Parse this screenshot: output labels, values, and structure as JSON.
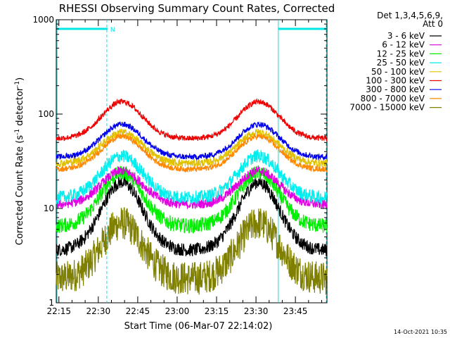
{
  "chart_data": {
    "type": "line",
    "title": "RHESSI Observing Summary Count Rates, Corrected",
    "xlabel": "Start Time (06-Mar-07 22:14:02)",
    "ylabel_main": "Corrected Count Rate (s",
    "ylabel_sup1": "-1",
    "ylabel_mid": " detector",
    "ylabel_sup2": "-1",
    "ylabel_end": ")",
    "yscale": "log",
    "ylim": [
      1,
      1000
    ],
    "xlim_minutes": [
      0,
      103
    ],
    "x_ticks": [
      {
        "label": "22:15",
        "minute": 1
      },
      {
        "label": "22:30",
        "minute": 16
      },
      {
        "label": "22:45",
        "minute": 31
      },
      {
        "label": "23:00",
        "minute": 46
      },
      {
        "label": "23:15",
        "minute": 61
      },
      {
        "label": "23:30",
        "minute": 76
      },
      {
        "label": "23:45",
        "minute": 91
      }
    ],
    "y_ticks": [
      {
        "label": "1",
        "value": 1
      },
      {
        "label": "10",
        "value": 10
      },
      {
        "label": "100",
        "value": 100
      },
      {
        "label": "1000",
        "value": 1000
      }
    ],
    "legend": {
      "position": "right",
      "header1": "Det 1,3,4,5,6,9,",
      "header2": "Att 0"
    },
    "series": [
      {
        "name": "3 - 6 keV",
        "color": "#000000",
        "base": 3.6,
        "peak": 19,
        "noise": 0.07
      },
      {
        "name": "6 - 12 keV",
        "color": "#e000e0",
        "base": 11,
        "peak": 25,
        "noise": 0.05
      },
      {
        "name": "12 - 25 keV",
        "color": "#00ee00",
        "base": 6.5,
        "peak": 24,
        "noise": 0.08
      },
      {
        "name": "25 - 50 keV",
        "color": "#00eeee",
        "base": 13,
        "peak": 36,
        "noise": 0.07
      },
      {
        "name": "50 - 100 keV",
        "color": "#e0c000",
        "base": 30,
        "peak": 64,
        "noise": 0.04
      },
      {
        "name": "100 - 300 keV",
        "color": "#ee0000",
        "base": 55,
        "peak": 135,
        "noise": 0.03
      },
      {
        "name": "300 - 800 keV",
        "color": "#0000ee",
        "base": 35,
        "peak": 78,
        "noise": 0.03
      },
      {
        "name": "800 - 7000 keV",
        "color": "#ff8800",
        "base": 26,
        "peak": 58,
        "noise": 0.03
      },
      {
        "name": "7000 - 15000 keV",
        "color": "#808000",
        "base": 1.8,
        "peak": 7,
        "noise": 0.18
      }
    ],
    "peaks_minutes": [
      25,
      77
    ],
    "peak_width_minutes": 11,
    "data_start_minute": 0,
    "data_end_minute": 103,
    "flag_bars": [
      {
        "start": 0.3,
        "end": 19.5,
        "label": "N"
      },
      {
        "start": 84.5,
        "end": 103,
        "label": ""
      }
    ],
    "markers_dashed": [
      19.5,
      103
    ],
    "markers_solid": [
      0.3,
      84.5
    ],
    "flag_level": 800
  },
  "footer": {
    "timestamp": "14-Oct-2021 10:35"
  },
  "colors": {
    "axis": "#000000",
    "flag": "#00e5e5"
  }
}
